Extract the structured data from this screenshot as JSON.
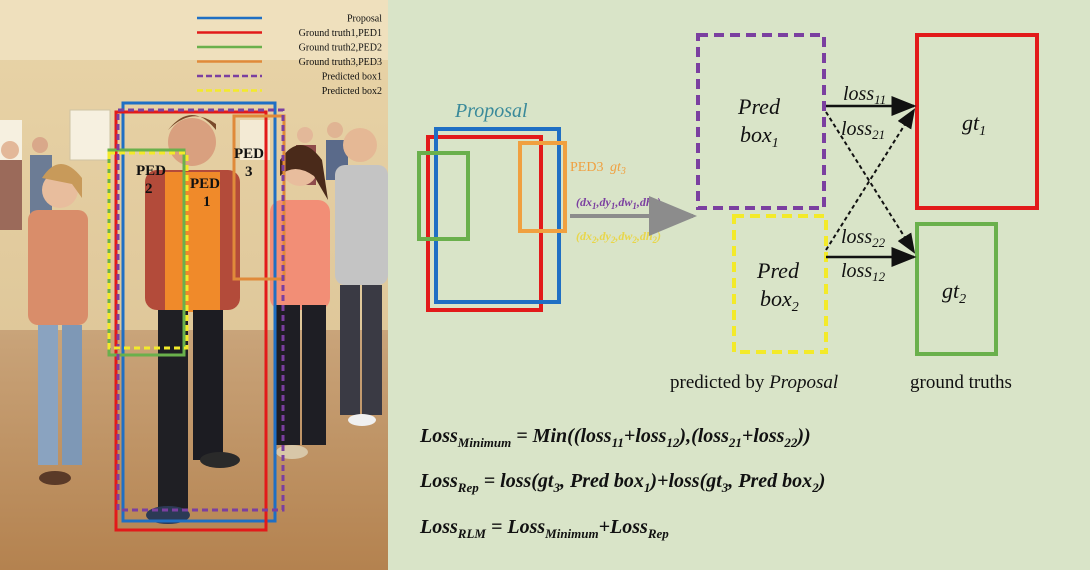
{
  "photo": {
    "legend": [
      {
        "label": "Proposal",
        "color": "#1f6fc4",
        "style": "solid"
      },
      {
        "label": "Ground truth1,PED1",
        "color": "#e21a1a",
        "style": "solid"
      },
      {
        "label": "Ground truth2,PED2",
        "color": "#6ab04c",
        "style": "solid"
      },
      {
        "label": "Ground truth3,PED3",
        "color": "#e08a3a",
        "style": "solid"
      },
      {
        "label": "Predicted box1",
        "color": "#7b3fa0",
        "style": "dashed"
      },
      {
        "label": "Predicted box2",
        "color": "#f3ea2a",
        "style": "dashed"
      }
    ],
    "ped1_label": [
      "PED",
      "1"
    ],
    "ped2_label": [
      "PED",
      "2"
    ],
    "ped3_label": [
      "PED",
      "3"
    ]
  },
  "diagram": {
    "proposal_title": "Proposal",
    "ped3_label": "PED3",
    "ped3_gt": "gt",
    "ped3_gt_sub": "3",
    "offset1": {
      "text": "(dx",
      "parts": [
        "(dx",
        "1",
        ",dy",
        "1",
        ",dw",
        "1",
        ",dh",
        "1",
        ")"
      ]
    },
    "offset2": {
      "parts": [
        "(dx",
        "2",
        ",dy",
        "2",
        ",dw",
        "2",
        ",dh",
        "2",
        ")"
      ]
    },
    "pred1": {
      "line1": "Pred",
      "line2": "box",
      "sub": "1"
    },
    "pred2": {
      "line1": "Pred",
      "line2": "box",
      "sub": "2"
    },
    "gt1": {
      "text": "gt",
      "sub": "1"
    },
    "gt2": {
      "text": "gt",
      "sub": "2"
    },
    "loss11": {
      "text": "loss",
      "sub": "11"
    },
    "loss21": {
      "text": "loss",
      "sub": "21"
    },
    "loss22": {
      "text": "loss",
      "sub": "22"
    },
    "loss12": {
      "text": "loss",
      "sub": "12"
    },
    "caption_pred_prefix": "predicted by ",
    "caption_pred_italic": "Proposal",
    "caption_gt": "ground truths"
  },
  "formulas": {
    "f1": [
      {
        "t": "Loss",
        "s": false
      },
      {
        "t": "Minimum",
        "s": true
      },
      {
        "t": " = Min((loss",
        "s": false
      },
      {
        "t": "11",
        "s": true
      },
      {
        "t": "+loss",
        "s": false
      },
      {
        "t": "12",
        "s": true
      },
      {
        "t": "),(loss",
        "s": false
      },
      {
        "t": "21",
        "s": true
      },
      {
        "t": "+loss",
        "s": false
      },
      {
        "t": "22",
        "s": true
      },
      {
        "t": "))",
        "s": false
      }
    ],
    "f2": [
      {
        "t": "Loss",
        "s": false
      },
      {
        "t": "Rep",
        "s": true
      },
      {
        "t": " = loss(gt",
        "s": false
      },
      {
        "t": "3",
        "s": true
      },
      {
        "t": ", Pred box",
        "s": false
      },
      {
        "t": "1",
        "s": true
      },
      {
        "t": ")+loss(gt",
        "s": false
      },
      {
        "t": "3",
        "s": true
      },
      {
        "t": ", Pred box",
        "s": false
      },
      {
        "t": "2",
        "s": true
      },
      {
        "t": ")",
        "s": false
      }
    ],
    "f3": [
      {
        "t": "Loss",
        "s": false
      },
      {
        "t": "RLM",
        "s": true
      },
      {
        "t": " = Loss",
        "s": false
      },
      {
        "t": "Minimum",
        "s": true
      },
      {
        "t": "+Loss",
        "s": false
      },
      {
        "t": "Rep",
        "s": true
      }
    ]
  },
  "colors": {
    "background": "#d9e4c8",
    "proposal": "#1f6fc4",
    "gt_red": "#e21a1a",
    "gt_green": "#6ab04c",
    "gt_orange": "#f0a040",
    "pred_purple": "#7b3fa0",
    "pred_yellow": "#f3ea2a",
    "arrow_gray": "#8c8c8c",
    "proposal_title": "#3a8a9a"
  }
}
